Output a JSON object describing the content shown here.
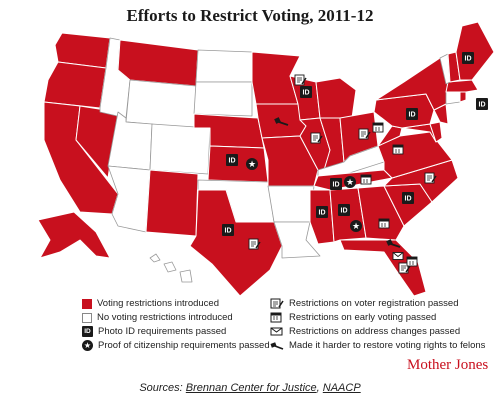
{
  "title": "Efforts to Restrict Voting, 2011-12",
  "colors": {
    "restricted": "#c8101e",
    "unrestricted": "#ffffff",
    "icon": "#1a1a1a"
  },
  "states": {
    "restricted": [
      "WA",
      "OR",
      "CA",
      "NV",
      "MT",
      "NM",
      "KS",
      "NE",
      "TX",
      "MN",
      "IA",
      "WI",
      "MO",
      "IL",
      "IN",
      "OH",
      "MI",
      "TN",
      "MS",
      "AL",
      "GA",
      "FL",
      "SC",
      "NC",
      "VA",
      "WV",
      "MD",
      "DE",
      "NJ",
      "PA",
      "NY",
      "NH",
      "ME",
      "RI",
      "MA",
      "AK"
    ],
    "unrestricted": [
      "ID",
      "UT",
      "AZ",
      "WY",
      "CO",
      "ND",
      "SD",
      "OK",
      "AR",
      "LA",
      "KY",
      "VT",
      "CT",
      "HI"
    ]
  },
  "icons": {
    "photo_id": [
      "WI",
      "KS",
      "TX",
      "TN",
      "MS",
      "AL",
      "SC",
      "PA",
      "RI",
      "NH"
    ],
    "proof_of_citizenship": [
      "KS",
      "TN",
      "AL"
    ],
    "registration_restricted": [
      "WI",
      "IL",
      "OH",
      "FL",
      "TX",
      "NC"
    ],
    "early_voting_restricted": [
      "TN",
      "GA",
      "FL",
      "WV",
      "OH"
    ],
    "address_changes_restricted": [
      "FL"
    ],
    "felon_voting_restricted": [
      "IA",
      "FL"
    ]
  },
  "legend": {
    "restricted": "Voting restrictions introduced",
    "unrestricted": "No voting restrictions introduced",
    "photo_id": "Photo ID requirements passed",
    "citizenship": "Proof of citizenship requirements passed",
    "registration": "Restrictions on voter registration passed",
    "early_voting": "Restrictions on early voting passed",
    "address_changes": "Restrictions on address changes passed",
    "felons": "Made it harder to restore voting rights to felons",
    "id_glyph": "ID",
    "star_glyph": "★"
  },
  "brand": "Mother Jones",
  "sources": {
    "prefix": "Sources:",
    "org1": "Brennan Center for Justice",
    "sep": ",",
    "org2": "NAACP"
  }
}
